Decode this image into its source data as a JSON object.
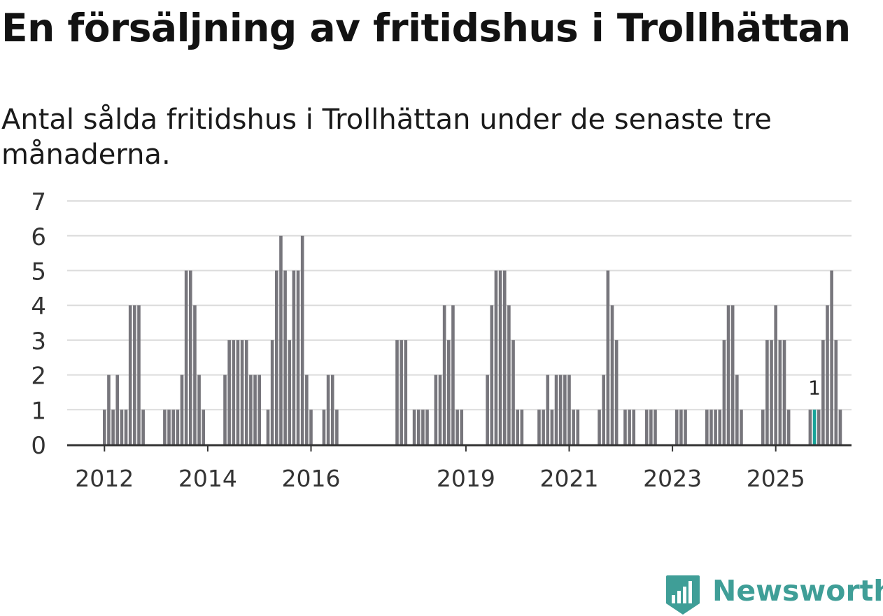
{
  "title": "En försäljning av fritidshus i Trollhättan",
  "subtitle": "Antal sålda fritidshus i Trollhättan under de senaste tre månaderna.",
  "brand": {
    "name": "Newsworthy"
  },
  "colors": {
    "bar": "#77767c",
    "highlight": "#17a398",
    "grid": "#dcdcdc",
    "axis": "#333333",
    "brand": "#3f9e97"
  },
  "chart_data": {
    "type": "bar",
    "title": "En försäljning av fritidshus i Trollhättan",
    "subtitle": "Antal sålda fritidshus i Trollhättan under de senaste tre månaderna.",
    "xlabel": "",
    "ylabel": "",
    "ylim": [
      0,
      7
    ],
    "yticks": [
      0,
      1,
      2,
      3,
      4,
      5,
      6,
      7
    ],
    "grid": true,
    "x_start": "2012-01",
    "frequency": "monthly",
    "xtick_labels": [
      {
        "label": "2012",
        "index": 0
      },
      {
        "label": "2014",
        "index": 24
      },
      {
        "label": "2016",
        "index": 48
      },
      {
        "label": "2019",
        "index": 84
      },
      {
        "label": "2021",
        "index": 108
      },
      {
        "label": "2023",
        "index": 132
      },
      {
        "label": "2025",
        "index": 156
      }
    ],
    "values": [
      1,
      2,
      1,
      2,
      1,
      1,
      4,
      4,
      4,
      1,
      0,
      0,
      0,
      0,
      1,
      1,
      1,
      1,
      2,
      5,
      5,
      4,
      2,
      1,
      0,
      0,
      0,
      0,
      2,
      3,
      3,
      3,
      3,
      3,
      2,
      2,
      2,
      0,
      1,
      3,
      5,
      6,
      5,
      3,
      5,
      5,
      6,
      2,
      1,
      0,
      0,
      1,
      2,
      2,
      1,
      0,
      0,
      0,
      0,
      0,
      0,
      0,
      0,
      0,
      0,
      0,
      0,
      0,
      3,
      3,
      3,
      0,
      1,
      1,
      1,
      1,
      0,
      2,
      2,
      4,
      3,
      4,
      1,
      1,
      0,
      0,
      0,
      0,
      0,
      2,
      4,
      5,
      5,
      5,
      4,
      3,
      1,
      1,
      0,
      0,
      0,
      1,
      1,
      2,
      1,
      2,
      2,
      2,
      2,
      1,
      1,
      0,
      0,
      0,
      0,
      1,
      2,
      5,
      4,
      3,
      0,
      1,
      1,
      1,
      0,
      0,
      1,
      1,
      1,
      0,
      0,
      0,
      0,
      1,
      1,
      1,
      0,
      0,
      0,
      0,
      1,
      1,
      1,
      1,
      3,
      4,
      4,
      2,
      1,
      0,
      0,
      0,
      0,
      1,
      3,
      3,
      4,
      3,
      3,
      1,
      0,
      0,
      0,
      0,
      1,
      1,
      1,
      3,
      4,
      5,
      3,
      1
    ],
    "highlight": {
      "index": 165,
      "value": 1,
      "label": "1"
    }
  }
}
